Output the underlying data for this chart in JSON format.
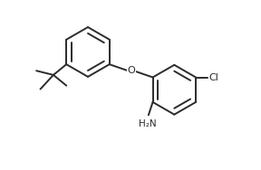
{
  "background": "#ffffff",
  "line_color": "#2b2b2b",
  "line_width": 1.4,
  "fig_width": 2.88,
  "fig_height": 1.88,
  "dpi": 100,
  "xlim": [
    -4.5,
    5.5
  ],
  "ylim": [
    -3.2,
    4.0
  ]
}
